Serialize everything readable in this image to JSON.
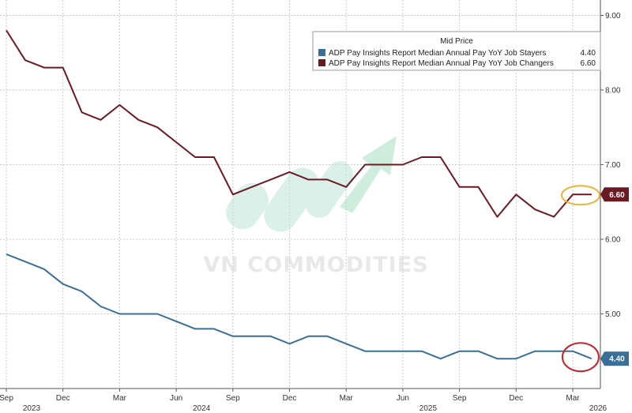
{
  "chart_data": {
    "type": "line",
    "x": [
      "2023-09",
      "2023-10",
      "2023-11",
      "2023-12",
      "2024-01",
      "2024-02",
      "2024-03",
      "2024-04",
      "2024-05",
      "2024-06",
      "2024-07",
      "2024-08",
      "2024-09",
      "2024-10",
      "2024-11",
      "2024-12",
      "2025-01",
      "2025-02",
      "2025-03",
      "2025-04",
      "2025-05",
      "2025-06",
      "2025-07",
      "2025-08",
      "2025-09",
      "2025-10",
      "2025-11",
      "2025-12",
      "2026-01",
      "2026-02",
      "2026-03",
      "2026-04"
    ],
    "series": [
      {
        "name": "ADP Pay Insights Report Median Annual Pay YoY Job Changers",
        "color": "#6b1a24",
        "last_value_label": "6.60",
        "values": [
          8.8,
          8.4,
          8.3,
          8.3,
          7.7,
          7.6,
          7.8,
          7.6,
          7.5,
          7.3,
          7.1,
          7.1,
          6.6,
          6.7,
          6.8,
          6.9,
          6.8,
          6.8,
          6.7,
          7.0,
          7.0,
          7.0,
          7.1,
          7.1,
          6.7,
          6.7,
          6.3,
          6.6,
          6.4,
          6.3,
          6.6,
          6.6
        ]
      },
      {
        "name": "ADP Pay Insights Report Median Annual Pay YoY Job Stayers",
        "color": "#3a6f97",
        "last_value_label": "4.40",
        "values": [
          5.8,
          5.7,
          5.6,
          5.4,
          5.3,
          5.1,
          5.0,
          5.0,
          5.0,
          4.9,
          4.8,
          4.8,
          4.7,
          4.7,
          4.7,
          4.6,
          4.7,
          4.7,
          4.6,
          4.5,
          4.5,
          4.5,
          4.5,
          4.4,
          4.5,
          4.5,
          4.4,
          4.4,
          4.5,
          4.5,
          4.5,
          4.4
        ]
      }
    ],
    "ylim": [
      4.0,
      9.1
    ],
    "yticks": [
      {
        "value": 9.0,
        "label": "9.00"
      },
      {
        "value": 8.0,
        "label": "8.00"
      },
      {
        "value": 7.0,
        "label": "7.00"
      },
      {
        "value": 6.0,
        "label": "6.00"
      },
      {
        "value": 5.0,
        "label": "5.00"
      }
    ],
    "xticks": [
      {
        "x": "2023-09",
        "label": "Sep"
      },
      {
        "x": "2023-12",
        "label": "Dec"
      },
      {
        "x": "2024-03",
        "label": "Mar"
      },
      {
        "x": "2024-06",
        "label": "Jun"
      },
      {
        "x": "2024-09",
        "label": "Sep"
      },
      {
        "x": "2024-12",
        "label": "Dec"
      },
      {
        "x": "2025-03",
        "label": "Mar"
      },
      {
        "x": "2025-06",
        "label": "Jun"
      },
      {
        "x": "2025-09",
        "label": "Sep"
      },
      {
        "x": "2025-12",
        "label": "Dec"
      },
      {
        "x": "2026-03",
        "label": "Mar"
      }
    ],
    "year_labels": [
      {
        "x": "2023-09",
        "label": "2023"
      },
      {
        "x": "2024-06",
        "label": "2024"
      },
      {
        "x": "2025-06",
        "label": "2025"
      },
      {
        "x": "2026-03",
        "label": "2026"
      }
    ],
    "legend": {
      "title": "Mid Price",
      "placement": "top-right",
      "entries": [
        {
          "label": "ADP Pay Insights Report Median Annual Pay YoY Job Stayers",
          "value": "4.40",
          "color": "#3a6f97"
        },
        {
          "label": "ADP Pay Insights Report Median Annual Pay YoY Job Changers",
          "value": "6.60",
          "color": "#6b1a24"
        }
      ]
    },
    "grid": true,
    "y_axis_side": "right",
    "highlights": [
      {
        "series": "Job Changers",
        "shape": "ellipse",
        "color": "#e8b43a"
      },
      {
        "series": "Job Stayers",
        "shape": "ellipse",
        "color": "#c0262d"
      }
    ]
  },
  "watermark": {
    "text": "VN COMMODITIES"
  }
}
